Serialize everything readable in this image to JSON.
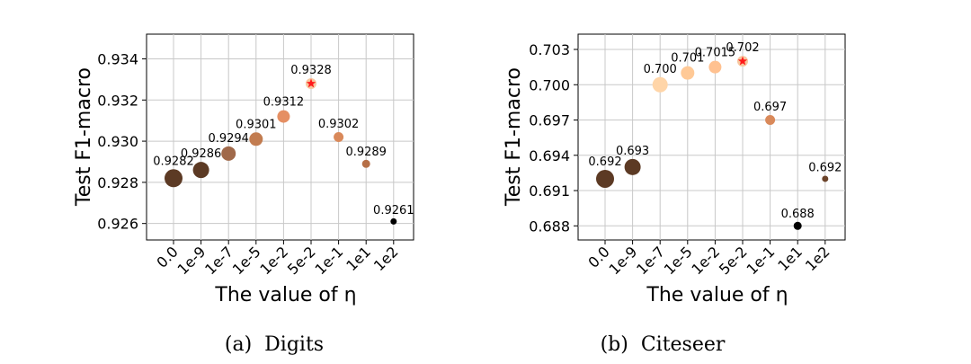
{
  "chart_data": [
    {
      "type": "scatter",
      "caption": "(a)  Digits",
      "title": "",
      "xlabel": "The value of η",
      "ylabel": "Test F1-macro",
      "categories": [
        "0.0",
        "1e-9",
        "1e-7",
        "1e-5",
        "1e-2",
        "5e-2",
        "1e-1",
        "1e1",
        "1e2"
      ],
      "values": [
        0.9282,
        0.9286,
        0.9294,
        0.9301,
        0.9312,
        0.9328,
        0.9302,
        0.9289,
        0.9261
      ],
      "point_labels": [
        "0.9282",
        "0.9286",
        "0.9294",
        "0.9301",
        "0.9312",
        "0.9328",
        "0.9302",
        "0.9289",
        "0.9261"
      ],
      "yticks": [
        0.926,
        0.928,
        0.93,
        0.932,
        0.934
      ],
      "ytick_labels": [
        "0.926",
        "0.928",
        "0.930",
        "0.932",
        "0.934"
      ],
      "ylim": [
        0.9252,
        0.9352
      ],
      "best_index": 5,
      "best_marker": "star",
      "grid": true
    },
    {
      "type": "scatter",
      "caption": "(b)  Citeseer",
      "title": "",
      "xlabel": "The value of η",
      "ylabel": "Test F1-macro",
      "categories": [
        "0.0",
        "1e-9",
        "1e-7",
        "1e-5",
        "1e-2",
        "5e-2",
        "1e-1",
        "1e1",
        "1e2"
      ],
      "values": [
        0.692,
        0.693,
        0.7,
        0.701,
        0.7015,
        0.702,
        0.697,
        0.688,
        0.692
      ],
      "point_labels": [
        "0.692",
        "0.693",
        "0.700",
        "0.701",
        "0.7015",
        "0.702",
        "0.697",
        "0.688",
        "0.692"
      ],
      "yticks": [
        0.688,
        0.691,
        0.694,
        0.697,
        0.7,
        0.703
      ],
      "ytick_labels": [
        "0.688",
        "0.691",
        "0.694",
        "0.697",
        "0.700",
        "0.703"
      ],
      "ylim": [
        0.6868,
        0.7043
      ],
      "best_index": 5,
      "best_marker": "star",
      "grid": true
    }
  ],
  "colors": [
    "#5c3a24",
    "#5c3a24",
    "#a0694a",
    "#c27c50",
    "#e58f63",
    "#f7c79f",
    "#d9895a",
    "#b66f47",
    "#000000"
  ],
  "colors_citeseer": [
    "#5c3a24",
    "#5c3a24",
    "#ffd5a8",
    "#ffc996",
    "#ffc190",
    "#f7c79f",
    "#d9895a",
    "#000000",
    "#6b432a"
  ],
  "star_color": "#ff1a1a"
}
